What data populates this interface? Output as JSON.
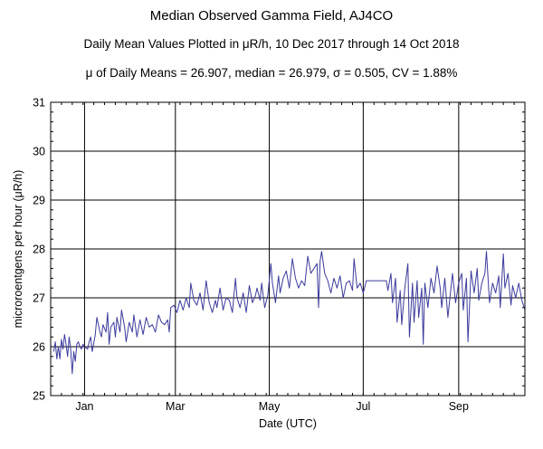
{
  "title": "Median Observed Gamma Field, AJ4CO",
  "subtitle": "Daily Mean Values Plotted in μR/h, 10 Dec 2017 through 14 Oct 2018",
  "stats": "μ of Daily Means = 26.907,   median = 26.979,   σ = 0.505,   CV = 1.88%",
  "chart_data": {
    "type": "line",
    "title": "Median Observed Gamma Field, AJ4CO",
    "subtitle": "Daily Mean Values Plotted in μR/h, 10 Dec 2017 through 14 Oct 2018",
    "xlabel": "Date (UTC)",
    "ylabel": "microroentgens per hour (μR/h)",
    "x_range": [
      "2017-12-10",
      "2018-10-14"
    ],
    "ylim": [
      25,
      31
    ],
    "yticks": [
      25,
      26,
      27,
      28,
      29,
      30,
      31
    ],
    "xticks": [
      {
        "label": "Jan",
        "date": "2018-01-01"
      },
      {
        "label": "Mar",
        "date": "2018-03-01"
      },
      {
        "label": "May",
        "date": "2018-05-01"
      },
      {
        "label": "Jul",
        "date": "2018-07-01"
      },
      {
        "label": "Sep",
        "date": "2018-09-01"
      }
    ],
    "grid": true,
    "line_color": "#3b3b9c",
    "series": [
      {
        "name": "",
        "points": [
          [
            "2017-12-12",
            25.9
          ],
          [
            "2017-12-13",
            26.1
          ],
          [
            "2017-12-14",
            25.75
          ],
          [
            "2017-12-15",
            26.0
          ],
          [
            "2017-12-16",
            25.75
          ],
          [
            "2017-12-17",
            26.15
          ],
          [
            "2017-12-18",
            25.95
          ],
          [
            "2017-12-19",
            26.25
          ],
          [
            "2017-12-20",
            26.05
          ],
          [
            "2017-12-21",
            25.8
          ],
          [
            "2017-12-22",
            26.2
          ],
          [
            "2017-12-23",
            25.95
          ],
          [
            "2017-12-24",
            25.45
          ],
          [
            "2017-12-25",
            25.9
          ],
          [
            "2017-12-26",
            25.7
          ],
          [
            "2017-12-27",
            26.05
          ],
          [
            "2017-12-28",
            26.1
          ],
          [
            "2017-12-29",
            26.0
          ],
          [
            "2017-12-30",
            25.95
          ],
          [
            "2017-12-31",
            26.05
          ],
          [
            "2018-01-01",
            26.0
          ],
          [
            "2018-01-03",
            25.95
          ],
          [
            "2018-01-04",
            26.1
          ],
          [
            "2018-01-05",
            26.2
          ],
          [
            "2018-01-06",
            25.9
          ],
          [
            "2018-01-08",
            26.25
          ],
          [
            "2018-01-09",
            26.6
          ],
          [
            "2018-01-11",
            26.3
          ],
          [
            "2018-01-12",
            26.2
          ],
          [
            "2018-01-13",
            26.45
          ],
          [
            "2018-01-15",
            26.3
          ],
          [
            "2018-01-16",
            26.7
          ],
          [
            "2018-01-17",
            26.05
          ],
          [
            "2018-01-18",
            26.4
          ],
          [
            "2018-01-20",
            26.5
          ],
          [
            "2018-01-21",
            26.2
          ],
          [
            "2018-01-22",
            26.6
          ],
          [
            "2018-01-24",
            26.3
          ],
          [
            "2018-01-25",
            26.75
          ],
          [
            "2018-01-27",
            26.4
          ],
          [
            "2018-01-28",
            26.1
          ],
          [
            "2018-01-30",
            26.5
          ],
          [
            "2018-02-01",
            26.3
          ],
          [
            "2018-02-02",
            26.65
          ],
          [
            "2018-02-04",
            26.2
          ],
          [
            "2018-02-06",
            26.55
          ],
          [
            "2018-02-08",
            26.25
          ],
          [
            "2018-02-10",
            26.6
          ],
          [
            "2018-02-12",
            26.4
          ],
          [
            "2018-02-14",
            26.45
          ],
          [
            "2018-02-16",
            26.3
          ],
          [
            "2018-02-18",
            26.65
          ],
          [
            "2018-02-20",
            26.5
          ],
          [
            "2018-02-22",
            26.45
          ],
          [
            "2018-02-24",
            26.55
          ],
          [
            "2018-02-25",
            26.3
          ],
          [
            "2018-02-26",
            26.8
          ],
          [
            "2018-02-28",
            26.85
          ],
          [
            "2018-03-02",
            26.7
          ],
          [
            "2018-03-04",
            26.95
          ],
          [
            "2018-03-06",
            26.75
          ],
          [
            "2018-03-08",
            27.0
          ],
          [
            "2018-03-10",
            26.8
          ],
          [
            "2018-03-11",
            27.3
          ],
          [
            "2018-03-13",
            26.95
          ],
          [
            "2018-03-15",
            26.85
          ],
          [
            "2018-03-17",
            27.1
          ],
          [
            "2018-03-19",
            26.75
          ],
          [
            "2018-03-21",
            27.35
          ],
          [
            "2018-03-23",
            26.9
          ],
          [
            "2018-03-25",
            26.7
          ],
          [
            "2018-03-27",
            26.95
          ],
          [
            "2018-03-28",
            26.8
          ],
          [
            "2018-03-30",
            27.2
          ],
          [
            "2018-04-01",
            26.75
          ],
          [
            "2018-04-03",
            27.0
          ],
          [
            "2018-04-05",
            26.95
          ],
          [
            "2018-04-07",
            26.7
          ],
          [
            "2018-04-09",
            27.4
          ],
          [
            "2018-04-10",
            27.0
          ],
          [
            "2018-04-12",
            26.8
          ],
          [
            "2018-04-14",
            27.1
          ],
          [
            "2018-04-16",
            26.7
          ],
          [
            "2018-04-18",
            27.25
          ],
          [
            "2018-04-20",
            26.9
          ],
          [
            "2018-04-22",
            27.05
          ],
          [
            "2018-04-23",
            27.2
          ],
          [
            "2018-04-25",
            26.95
          ],
          [
            "2018-04-26",
            27.3
          ],
          [
            "2018-04-28",
            26.8
          ],
          [
            "2018-04-30",
            27.05
          ],
          [
            "2018-05-02",
            27.7
          ],
          [
            "2018-05-03",
            27.3
          ],
          [
            "2018-05-05",
            26.9
          ],
          [
            "2018-05-07",
            27.45
          ],
          [
            "2018-05-08",
            27.1
          ],
          [
            "2018-05-10",
            27.4
          ],
          [
            "2018-05-12",
            27.55
          ],
          [
            "2018-05-14",
            27.2
          ],
          [
            "2018-05-16",
            27.8
          ],
          [
            "2018-05-18",
            27.4
          ],
          [
            "2018-05-20",
            27.2
          ],
          [
            "2018-05-22",
            27.35
          ],
          [
            "2018-05-24",
            27.25
          ],
          [
            "2018-05-26",
            27.85
          ],
          [
            "2018-05-28",
            27.5
          ],
          [
            "2018-06-01",
            27.7
          ],
          [
            "2018-06-02",
            26.8
          ],
          [
            "2018-06-03",
            27.75
          ],
          [
            "2018-06-04",
            27.95
          ],
          [
            "2018-06-06",
            27.5
          ],
          [
            "2018-06-08",
            27.35
          ],
          [
            "2018-06-10",
            27.1
          ],
          [
            "2018-06-12",
            27.4
          ],
          [
            "2018-06-14",
            27.2
          ],
          [
            "2018-06-16",
            27.45
          ],
          [
            "2018-06-18",
            27.0
          ],
          [
            "2018-06-20",
            27.3
          ],
          [
            "2018-06-22",
            27.35
          ],
          [
            "2018-06-24",
            27.15
          ],
          [
            "2018-06-25",
            27.8
          ],
          [
            "2018-06-27",
            27.2
          ],
          [
            "2018-06-29",
            27.3
          ],
          [
            "2018-07-01",
            27.1
          ],
          [
            "2018-07-03",
            27.35
          ],
          [
            "2018-07-16",
            27.35
          ],
          [
            "2018-07-17",
            27.15
          ],
          [
            "2018-07-19",
            27.5
          ],
          [
            "2018-07-20",
            26.9
          ],
          [
            "2018-07-22",
            27.4
          ],
          [
            "2018-07-23",
            26.5
          ],
          [
            "2018-07-25",
            27.15
          ],
          [
            "2018-07-26",
            26.45
          ],
          [
            "2018-07-28",
            27.2
          ],
          [
            "2018-07-30",
            27.7
          ],
          [
            "2018-07-31",
            26.2
          ],
          [
            "2018-08-02",
            27.3
          ],
          [
            "2018-08-03",
            26.5
          ],
          [
            "2018-08-05",
            27.35
          ],
          [
            "2018-08-06",
            26.6
          ],
          [
            "2018-08-08",
            27.2
          ],
          [
            "2018-08-09",
            26.05
          ],
          [
            "2018-08-10",
            27.3
          ],
          [
            "2018-08-12",
            26.8
          ],
          [
            "2018-08-14",
            27.4
          ],
          [
            "2018-08-16",
            27.1
          ],
          [
            "2018-08-18",
            27.65
          ],
          [
            "2018-08-20",
            27.2
          ],
          [
            "2018-08-21",
            26.8
          ],
          [
            "2018-08-23",
            27.4
          ],
          [
            "2018-08-25",
            26.6
          ],
          [
            "2018-08-27",
            27.2
          ],
          [
            "2018-08-28",
            27.5
          ],
          [
            "2018-08-30",
            26.9
          ],
          [
            "2018-09-01",
            27.3
          ],
          [
            "2018-09-03",
            27.5
          ],
          [
            "2018-09-04",
            26.75
          ],
          [
            "2018-09-06",
            27.4
          ],
          [
            "2018-09-07",
            26.1
          ],
          [
            "2018-09-09",
            27.55
          ],
          [
            "2018-09-11",
            27.1
          ],
          [
            "2018-09-13",
            27.6
          ],
          [
            "2018-09-14",
            26.95
          ],
          [
            "2018-09-16",
            27.3
          ],
          [
            "2018-09-18",
            27.5
          ],
          [
            "2018-09-19",
            27.95
          ],
          [
            "2018-09-21",
            26.9
          ],
          [
            "2018-09-23",
            27.3
          ],
          [
            "2018-09-25",
            27.1
          ],
          [
            "2018-09-27",
            27.45
          ],
          [
            "2018-09-28",
            26.8
          ],
          [
            "2018-09-30",
            27.9
          ],
          [
            "2018-10-01",
            27.2
          ],
          [
            "2018-10-03",
            27.5
          ],
          [
            "2018-10-05",
            26.85
          ],
          [
            "2018-10-06",
            27.25
          ],
          [
            "2018-10-08",
            27.0
          ],
          [
            "2018-10-10",
            27.3
          ],
          [
            "2018-10-12",
            26.95
          ],
          [
            "2018-10-14",
            26.75
          ]
        ]
      }
    ]
  }
}
